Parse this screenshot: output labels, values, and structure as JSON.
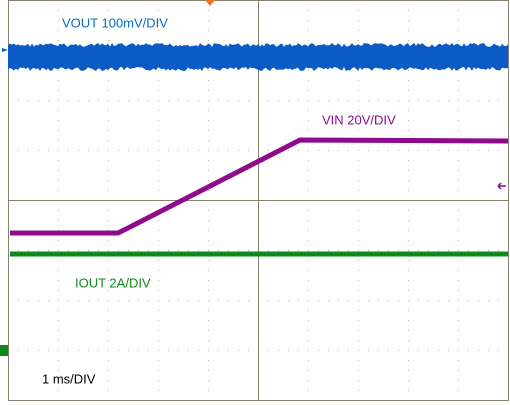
{
  "channels": {
    "vout": "VOUT 100mV/DIV",
    "vin": "VIN 20V/DIV",
    "iout": "IOUT 2A/DIV"
  },
  "timebase": "1 ms/DIV"
}
